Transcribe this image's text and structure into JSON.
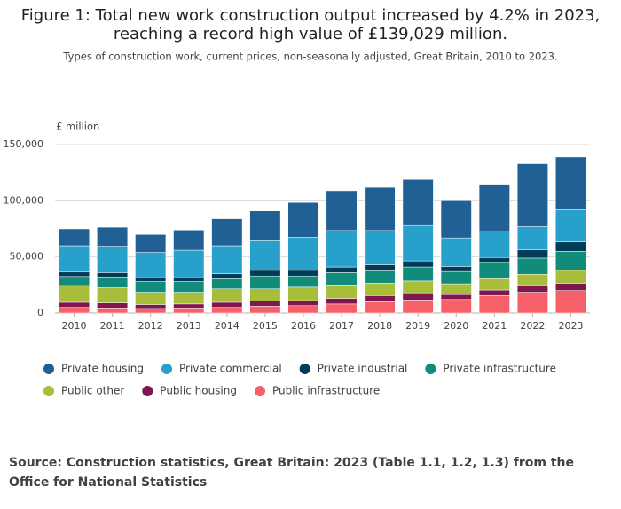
{
  "chart_data": {
    "type": "stacked_bar",
    "title": [
      "Figure 1: Total new work construction output increased by 4.2% in 2023,",
      "reaching a record high value of £139,029 million."
    ],
    "subtitle": "Types of construction work, current prices, non-seasonally adjusted, Great Britain, 2010 to 2023.",
    "y_label": "£ million",
    "source": "Source: Construction statistics, Great Britain: 2023 (Table 1.1, 1.2, 1.3) from the Office for National Statistics",
    "categories": [
      "2010",
      "2011",
      "2012",
      "2013",
      "2014",
      "2015",
      "2016",
      "2017",
      "2018",
      "2019",
      "2020",
      "2021",
      "2022",
      "2023"
    ],
    "ylim": [
      0,
      150000
    ],
    "yticks": [
      0,
      {
        "value": 50000,
        "label": "50,000"
      },
      {
        "value": 100000,
        "label": "100,000"
      },
      {
        "value": 150000,
        "label": "150,000"
      }
    ],
    "series": [
      {
        "name": "Public infrastructure",
        "color": "#f66068",
        "values": [
          5000,
          4500,
          4000,
          4500,
          5000,
          6000,
          6500,
          8000,
          10000,
          11500,
          12000,
          15500,
          18500,
          20000
        ]
      },
      {
        "name": "Public housing",
        "color": "#801650",
        "values": [
          4500,
          4500,
          3500,
          3500,
          4500,
          4500,
          4500,
          5000,
          5500,
          6500,
          4500,
          5000,
          6000,
          6500
        ]
      },
      {
        "name": "Public other",
        "color": "#a8bd3a",
        "values": [
          15000,
          13500,
          11000,
          10500,
          12000,
          11000,
          12000,
          12000,
          11000,
          10500,
          9500,
          10000,
          10000,
          11500
        ]
      },
      {
        "name": "Private infrastructure",
        "color": "#118c7b",
        "values": [
          8000,
          9500,
          9500,
          9500,
          9000,
          11500,
          10000,
          11000,
          11000,
          12500,
          11000,
          14500,
          14500,
          17000
        ]
      },
      {
        "name": "Private industrial",
        "color": "#003c57",
        "values": [
          4000,
          4000,
          3500,
          3500,
          4500,
          5000,
          5000,
          5000,
          5500,
          5500,
          4500,
          4500,
          7500,
          8500
        ]
      },
      {
        "name": "Private commercial",
        "color": "#27a0cc",
        "values": [
          23500,
          23500,
          22500,
          24500,
          25000,
          26500,
          29500,
          32500,
          30500,
          31500,
          25500,
          23500,
          20500,
          28500
        ]
      },
      {
        "name": "Private housing",
        "color": "#206095",
        "values": [
          15000,
          17000,
          16000,
          18000,
          24000,
          26500,
          31000,
          35500,
          38500,
          41000,
          33000,
          41000,
          56000,
          47000
        ]
      }
    ],
    "legend_order": [
      6,
      5,
      4,
      3,
      2,
      1,
      0
    ]
  }
}
